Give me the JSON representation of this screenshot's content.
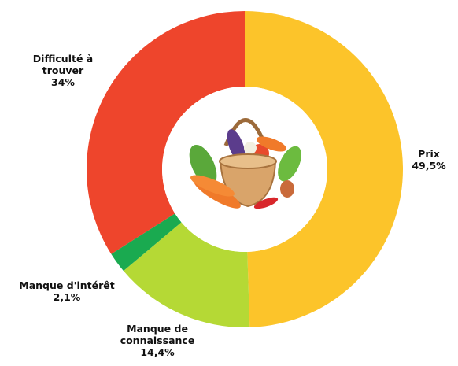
{
  "chart_data": {
    "type": "donut",
    "categories": [
      "Prix",
      "Manque de connaissance",
      "Manque d'intérêt",
      "Difficulté à trouver"
    ],
    "values": [
      49.5,
      14.4,
      2.1,
      34
    ],
    "value_labels": [
      "49,5%",
      "14,4%",
      "2,1%",
      "34%"
    ],
    "colors": [
      "#fcc42a",
      "#b5d935",
      "#1aaa50",
      "#ee452c"
    ]
  }
}
